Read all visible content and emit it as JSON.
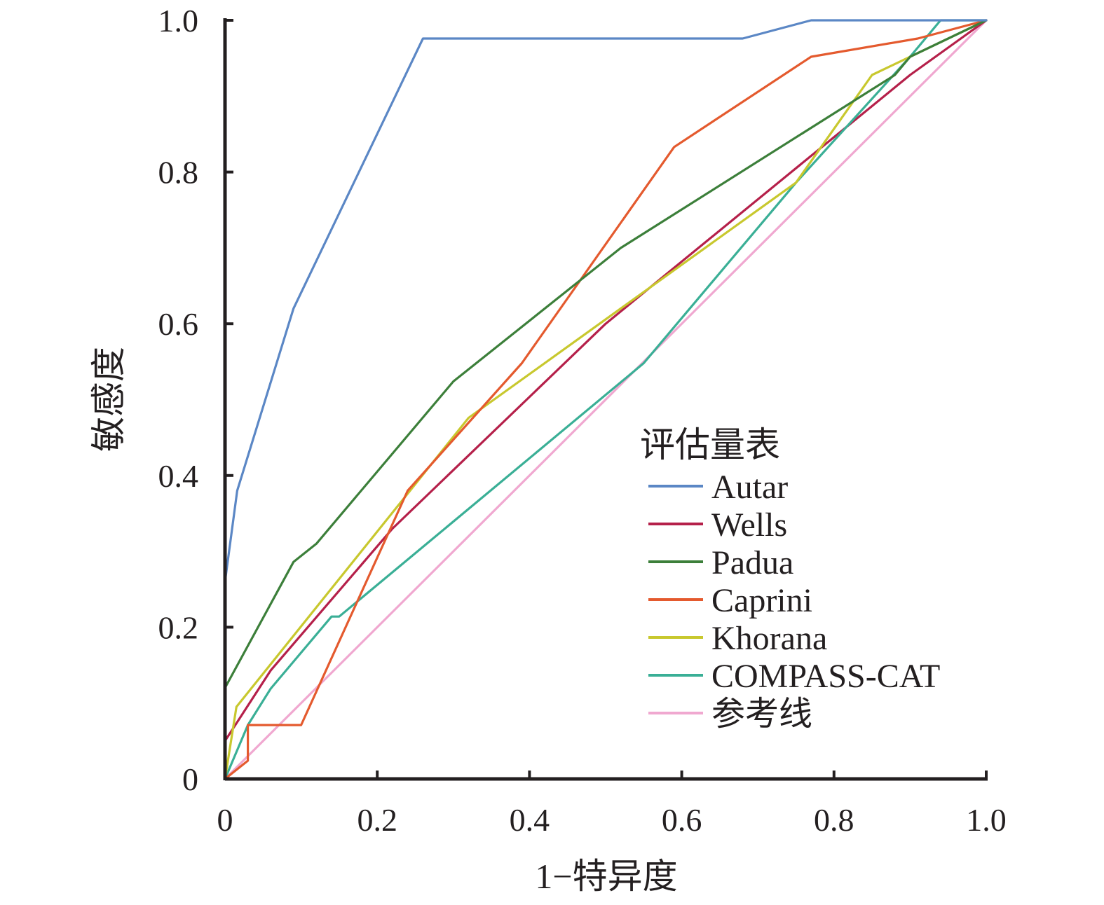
{
  "chart_data": {
    "type": "line",
    "xlabel": "1−特异度",
    "ylabel": "敏感度",
    "xlim": [
      0,
      1
    ],
    "ylim": [
      0,
      1
    ],
    "x_ticks": [
      0,
      0.2,
      0.4,
      0.6,
      0.8,
      1.0
    ],
    "y_ticks": [
      0,
      0.2,
      0.4,
      0.6,
      0.8,
      1.0
    ],
    "x_tick_labels": [
      "0",
      "0.2",
      "0.4",
      "0.6",
      "0.8",
      "1.0"
    ],
    "y_tick_labels": [
      "0",
      "0.2",
      "0.4",
      "0.6",
      "0.8",
      "1.0"
    ],
    "grid": false,
    "legend": {
      "title": "评估量表",
      "position": "bottom-right"
    },
    "series": [
      {
        "name": "Autar",
        "color": "#5b87c5",
        "points": [
          [
            0,
            0
          ],
          [
            0,
            0.26
          ],
          [
            0.016,
            0.38
          ],
          [
            0.09,
            0.62
          ],
          [
            0.26,
            0.976
          ],
          [
            0.68,
            0.976
          ],
          [
            0.77,
            1.0
          ],
          [
            1.0,
            1.0
          ]
        ]
      },
      {
        "name": "Wells",
        "color": "#b5204a",
        "points": [
          [
            0,
            0
          ],
          [
            0,
            0.05
          ],
          [
            0.06,
            0.143
          ],
          [
            0.22,
            0.33
          ],
          [
            0.5,
            0.6
          ],
          [
            0.9,
            0.928
          ],
          [
            1.0,
            1.0
          ]
        ]
      },
      {
        "name": "Padua",
        "color": "#3c7f3a",
        "points": [
          [
            0,
            0
          ],
          [
            0,
            0.12
          ],
          [
            0.09,
            0.286
          ],
          [
            0.12,
            0.31
          ],
          [
            0.3,
            0.524
          ],
          [
            0.52,
            0.7
          ],
          [
            0.88,
            0.928
          ],
          [
            0.9,
            0.952
          ],
          [
            1.0,
            1.0
          ]
        ]
      },
      {
        "name": "Caprini",
        "color": "#e45a2e",
        "points": [
          [
            0,
            0
          ],
          [
            0.03,
            0.024
          ],
          [
            0.03,
            0.071
          ],
          [
            0.1,
            0.071
          ],
          [
            0.24,
            0.38
          ],
          [
            0.39,
            0.548
          ],
          [
            0.59,
            0.833
          ],
          [
            0.77,
            0.952
          ],
          [
            0.91,
            0.976
          ],
          [
            1.0,
            1.0
          ]
        ]
      },
      {
        "name": "Khorana",
        "color": "#c8c82e",
        "points": [
          [
            0,
            0
          ],
          [
            0.015,
            0.095
          ],
          [
            0.32,
            0.476
          ],
          [
            0.75,
            0.786
          ],
          [
            0.85,
            0.928
          ],
          [
            1.0,
            1.0
          ]
        ]
      },
      {
        "name": "COMPASS-CAT",
        "color": "#3aaf96",
        "points": [
          [
            0,
            0
          ],
          [
            0.03,
            0.071
          ],
          [
            0.06,
            0.119
          ],
          [
            0.14,
            0.214
          ],
          [
            0.15,
            0.214
          ],
          [
            0.55,
            0.548
          ],
          [
            0.75,
            0.786
          ],
          [
            0.9,
            0.952
          ],
          [
            0.94,
            1.0
          ],
          [
            1.0,
            1.0
          ]
        ]
      },
      {
        "name": "参考线",
        "color": "#f0a8d0",
        "points": [
          [
            0,
            0
          ],
          [
            1.0,
            1.0
          ]
        ]
      }
    ]
  }
}
